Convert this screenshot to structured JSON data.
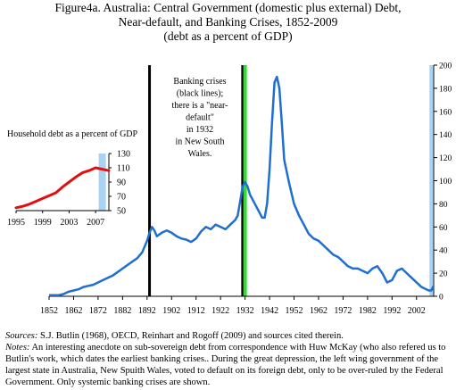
{
  "figure": {
    "title_lines": [
      "Figure4a. Australia:  Central Government (domestic plus external) Debt,",
      "Near-default, and Banking Crises, 1852-2009",
      "(debt as a percent of GDP)"
    ]
  },
  "chart_data": [
    {
      "type": "line",
      "title": "",
      "xlim": [
        1852,
        2009
      ],
      "x_ticks": [
        "1852",
        "1862",
        "1872",
        "1882",
        "1892",
        "1902",
        "1912",
        "1922",
        "1932",
        "1942",
        "1952",
        "1962",
        "1972",
        "1982",
        "1992",
        "2002"
      ],
      "ylim": [
        0,
        200
      ],
      "y_axis_side": "right",
      "y_ticks": [
        "0",
        "20",
        "40",
        "60",
        "80",
        "100",
        "120",
        "140",
        "160",
        "180",
        "200"
      ],
      "grid": false,
      "series": [
        {
          "color": "#1f6fd1",
          "points": [
            [
              1852,
              1
            ],
            [
              1856,
              1
            ],
            [
              1858,
              2
            ],
            [
              1860,
              4
            ],
            [
              1862,
              5
            ],
            [
              1864,
              6
            ],
            [
              1866,
              8
            ],
            [
              1868,
              9
            ],
            [
              1870,
              10
            ],
            [
              1872,
              12
            ],
            [
              1874,
              14
            ],
            [
              1876,
              16
            ],
            [
              1878,
              18
            ],
            [
              1880,
              21
            ],
            [
              1882,
              24
            ],
            [
              1884,
              27
            ],
            [
              1886,
              30
            ],
            [
              1888,
              33
            ],
            [
              1890,
              38
            ],
            [
              1892,
              48
            ],
            [
              1893,
              55
            ],
            [
              1894,
              60
            ],
            [
              1895,
              57
            ],
            [
              1896,
              52
            ],
            [
              1898,
              55
            ],
            [
              1900,
              57
            ],
            [
              1902,
              55
            ],
            [
              1904,
              52
            ],
            [
              1906,
              50
            ],
            [
              1908,
              49
            ],
            [
              1910,
              47
            ],
            [
              1912,
              50
            ],
            [
              1914,
              56
            ],
            [
              1916,
              60
            ],
            [
              1918,
              58
            ],
            [
              1920,
              62
            ],
            [
              1922,
              60
            ],
            [
              1924,
              58
            ],
            [
              1926,
              62
            ],
            [
              1928,
              66
            ],
            [
              1929,
              70
            ],
            [
              1930,
              82
            ],
            [
              1931,
              95
            ],
            [
              1932,
              99
            ],
            [
              1933,
              95
            ],
            [
              1934,
              88
            ],
            [
              1936,
              80
            ],
            [
              1938,
              72
            ],
            [
              1939,
              68
            ],
            [
              1940,
              68
            ],
            [
              1941,
              80
            ],
            [
              1942,
              110
            ],
            [
              1943,
              150
            ],
            [
              1944,
              185
            ],
            [
              1945,
              190
            ],
            [
              1946,
              180
            ],
            [
              1947,
              150
            ],
            [
              1948,
              118
            ],
            [
              1950,
              98
            ],
            [
              1952,
              80
            ],
            [
              1954,
              70
            ],
            [
              1956,
              62
            ],
            [
              1958,
              54
            ],
            [
              1960,
              50
            ],
            [
              1962,
              48
            ],
            [
              1964,
              44
            ],
            [
              1966,
              40
            ],
            [
              1968,
              36
            ],
            [
              1970,
              34
            ],
            [
              1972,
              30
            ],
            [
              1974,
              26
            ],
            [
              1976,
              24
            ],
            [
              1978,
              24
            ],
            [
              1980,
              22
            ],
            [
              1982,
              20
            ],
            [
              1984,
              24
            ],
            [
              1986,
              26
            ],
            [
              1988,
              20
            ],
            [
              1990,
              12
            ],
            [
              1992,
              14
            ],
            [
              1994,
              22
            ],
            [
              1996,
              24
            ],
            [
              1998,
              20
            ],
            [
              2000,
              16
            ],
            [
              2002,
              12
            ],
            [
              2004,
              8
            ],
            [
              2006,
              6
            ],
            [
              2007,
              5
            ],
            [
              2008,
              5
            ],
            [
              2009,
              9
            ]
          ]
        }
      ],
      "vertical_markers": [
        {
          "x": 1893,
          "color": "#000000"
        },
        {
          "x": 1931,
          "color": "#000000"
        },
        {
          "x": 1932,
          "color": "#2ee02e"
        },
        {
          "x": 2008,
          "color": "#a8d3f2"
        }
      ],
      "annotation_lines": [
        "Banking crises",
        "(black lines);",
        "there is a  \"near-",
        "default\"",
        "in 1932",
        "in New South",
        "Wales."
      ]
    },
    {
      "type": "line",
      "title": "Household debt as a percent of GDP",
      "xlim": [
        1995,
        2009
      ],
      "x_ticks": [
        "1995",
        "1999",
        "2003",
        "2007"
      ],
      "ylim": [
        50,
        130
      ],
      "y_ticks": [
        "50",
        "70",
        "90",
        "110",
        "130"
      ],
      "grid": false,
      "series": [
        {
          "color": "#e01010",
          "points": [
            [
              1995,
              54
            ],
            [
              1996,
              56
            ],
            [
              1997,
              59
            ],
            [
              1998,
              63
            ],
            [
              1999,
              67
            ],
            [
              2000,
              71
            ],
            [
              2001,
              75
            ],
            [
              2002,
              83
            ],
            [
              2003,
              90
            ],
            [
              2004,
              97
            ],
            [
              2005,
              103
            ],
            [
              2006,
              106
            ],
            [
              2007,
              110
            ],
            [
              2008,
              108
            ],
            [
              2009,
              106
            ]
          ]
        }
      ],
      "vertical_markers": [
        {
          "x": 2008,
          "color": "#a8d3f2"
        }
      ]
    }
  ],
  "footer": {
    "sources_label": "Sources:",
    "sources_text": " S.J. Butlin (1968), OECD, Reinhart and Rogoff (2009) and sources cited therein.",
    "notes_label": "Notes:",
    "notes_text": " An interesting anecdote on sub-sovereign debt from correspondence with Huw McKay (who also refered us to Butlin's work, which dates the earliest banking crises.. During the great depression, the left wing government of the largest state in Australia, New Spuith Wales, voted to default on its foreign debt, only to be over-ruled by the Federal Government. Only systemic banking crises are shown."
  }
}
